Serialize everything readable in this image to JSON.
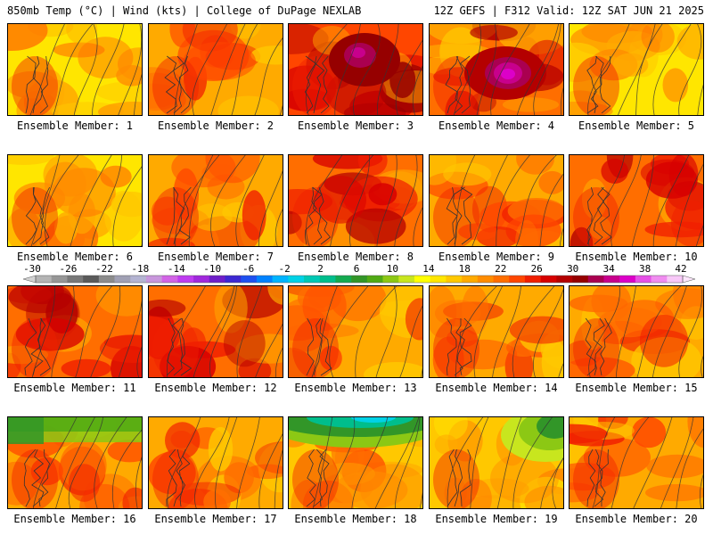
{
  "header": {
    "left": "850mb Temp (°C) | Wind (kts) | College of DuPage NEXLAB",
    "right": "12Z GEFS | F312 Valid: 12Z SAT JUN 21 2025"
  },
  "panels": [
    {
      "label": "Ensemble Member: 1",
      "theme": "yellow"
    },
    {
      "label": "Ensemble Member: 2",
      "theme": "orange"
    },
    {
      "label": "Ensemble Member: 3",
      "theme": "red-hot"
    },
    {
      "label": "Ensemble Member: 4",
      "theme": "magenta-hot"
    },
    {
      "label": "Ensemble Member: 5",
      "theme": "yellow"
    },
    {
      "label": "Ensemble Member: 6",
      "theme": "yellow"
    },
    {
      "label": "Ensemble Member: 7",
      "theme": "orange"
    },
    {
      "label": "Ensemble Member: 8",
      "theme": "red"
    },
    {
      "label": "Ensemble Member: 9",
      "theme": "orange"
    },
    {
      "label": "Ensemble Member: 10",
      "theme": "red"
    },
    {
      "label": "Ensemble Member: 11",
      "theme": "red"
    },
    {
      "label": "Ensemble Member: 12",
      "theme": "red"
    },
    {
      "label": "Ensemble Member: 13",
      "theme": "orange"
    },
    {
      "label": "Ensemble Member: 14",
      "theme": "orange"
    },
    {
      "label": "Ensemble Member: 15",
      "theme": "orange"
    },
    {
      "label": "Ensemble Member: 16",
      "theme": "green-n"
    },
    {
      "label": "Ensemble Member: 17",
      "theme": "orange"
    },
    {
      "label": "Ensemble Member: 18",
      "theme": "green-teal"
    },
    {
      "label": "Ensemble Member: 19",
      "theme": "green-ne"
    },
    {
      "label": "Ensemble Member: 20",
      "theme": "orange"
    }
  ],
  "colorbar": {
    "ticks": [
      "-30",
      "-26",
      "-22",
      "-18",
      "-14",
      "-10",
      "-6",
      "-2",
      "2",
      "6",
      "10",
      "14",
      "18",
      "22",
      "26",
      "30",
      "34",
      "38",
      "42"
    ],
    "colors": [
      "#b4b4b4",
      "#969696",
      "#787878",
      "#5a5a5a",
      "#8c8c8c",
      "#a0a0b4",
      "#b4b4d2",
      "#c896dc",
      "#d264e6",
      "#be3cf0",
      "#a028dc",
      "#6e1ec8",
      "#3c28d2",
      "#1e50f0",
      "#0082ff",
      "#00b4ff",
      "#00d2e6",
      "#00c8b4",
      "#00be8c",
      "#14aa50",
      "#329628",
      "#50aa14",
      "#8cc814",
      "#c8e61e",
      "#ffff00",
      "#ffe600",
      "#ffc800",
      "#ffaa00",
      "#ff8c00",
      "#ff6e00",
      "#ff4600",
      "#f01e00",
      "#d70000",
      "#b40000",
      "#960000",
      "#aa0050",
      "#c8008c",
      "#dc00c8",
      "#e650e6",
      "#f08cf0",
      "#f8c8f8"
    ]
  }
}
